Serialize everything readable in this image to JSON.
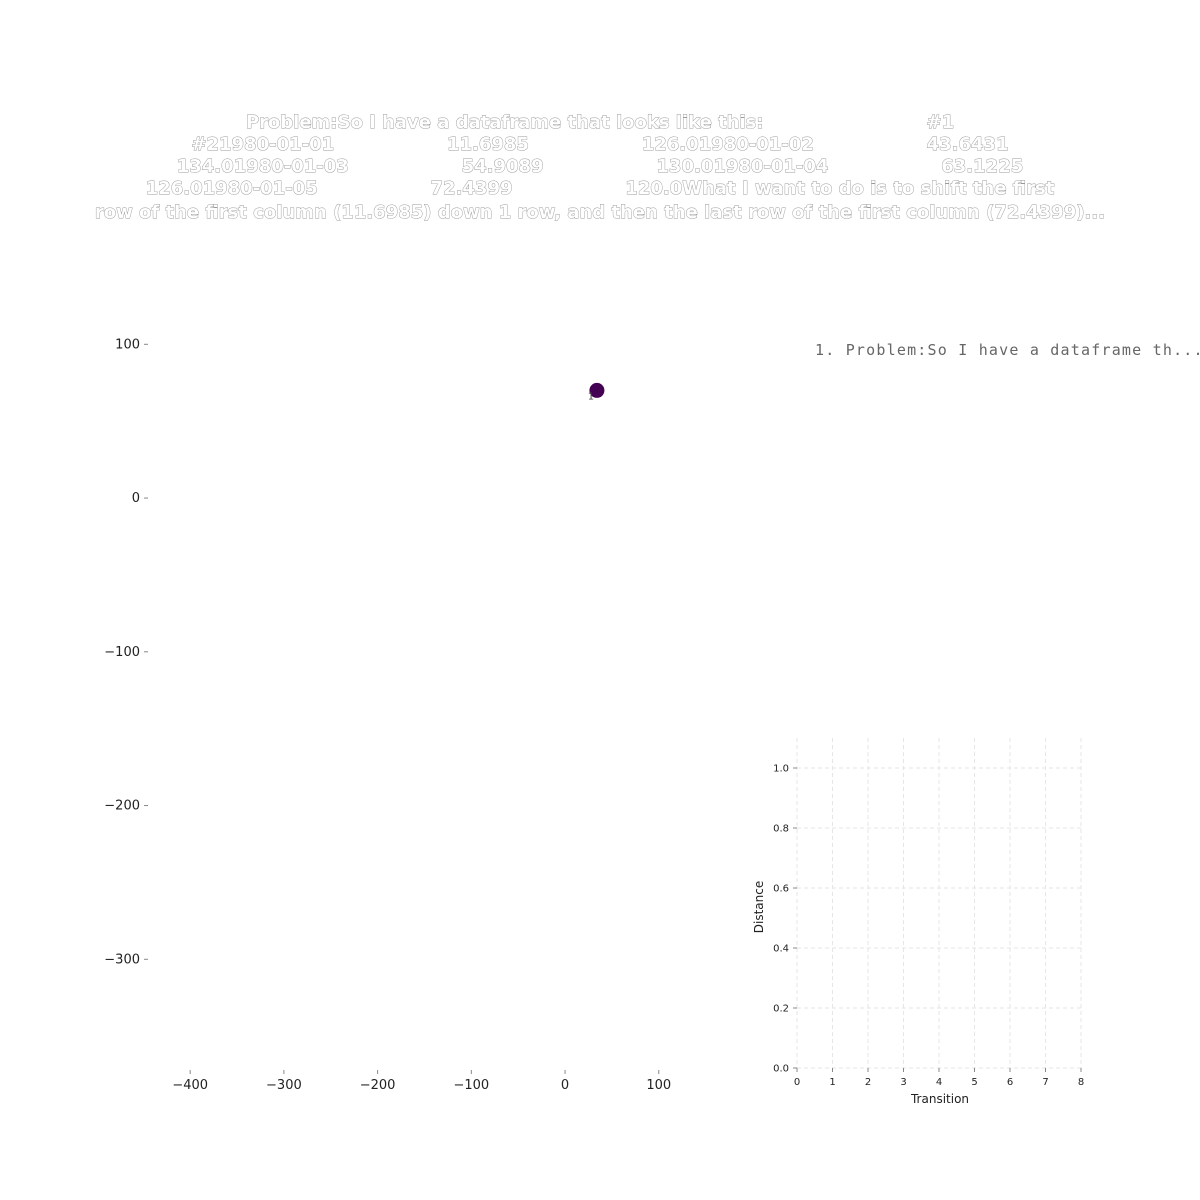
{
  "title_lines": [
    "Problem:So I have a dataframe that looks like this:                          #1",
    "#21980-01-01                  11.6985                  126.01980-01-02                  43.6431",
    "134.01980-01-03                  54.9089                  130.01980-01-04                  63.1225",
    "126.01980-01-05                  72.4399                  120.0What I want to do is to shift the first",
    "row of the first column (11.6985) down 1 row, and then the last row of the first column (72.4399)..."
  ],
  "legend": {
    "text": "1. Problem:So I have a dataframe th..."
  },
  "colors": {
    "point": "#440154",
    "grid": "#e6e6e6",
    "tick": "#888888"
  },
  "chart_data": [
    {
      "type": "scatter",
      "title": "",
      "xlabel": "",
      "ylabel": "",
      "xlim": [
        -445,
        160
      ],
      "ylim": [
        -372,
        108
      ],
      "x_ticks": [
        -400,
        -300,
        -200,
        -100,
        0,
        100
      ],
      "y_ticks": [
        100,
        0,
        -100,
        -200,
        -300
      ],
      "x_tick_labels": [
        "−400",
        "−300",
        "−200",
        "−100",
        "0",
        "100"
      ],
      "y_tick_labels": [
        "100",
        "0",
        "−100",
        "−200",
        "−300"
      ],
      "grid": false,
      "points": [
        {
          "x": 34,
          "y": 70,
          "label": "1"
        }
      ]
    },
    {
      "type": "line",
      "title": "",
      "xlabel": "Transition",
      "ylabel": "Distance",
      "xlim": [
        -0.2,
        8
      ],
      "ylim": [
        0,
        1.1
      ],
      "x_ticks": [
        0,
        1,
        2,
        3,
        4,
        5,
        6,
        7,
        8
      ],
      "y_ticks": [
        0.0,
        0.2,
        0.4,
        0.6,
        0.8,
        1.0
      ],
      "x_tick_labels": [
        "0",
        "1",
        "2",
        "3",
        "4",
        "5",
        "6",
        "7",
        "8"
      ],
      "y_tick_labels": [
        "0.0",
        "0.2",
        "0.4",
        "0.6",
        "0.8",
        "1.0"
      ],
      "grid": true,
      "series": []
    }
  ]
}
